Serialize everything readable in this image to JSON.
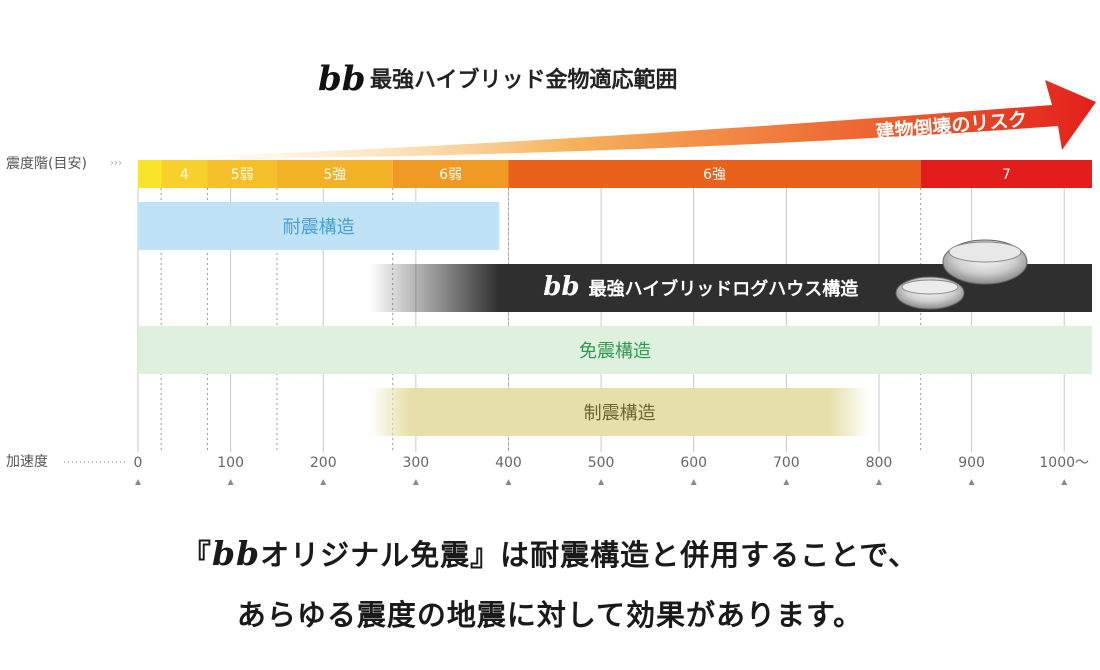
{
  "chart_data": {
    "type": "bar",
    "title_brand": "bb",
    "title": "最強ハイブリッド金物適応範囲",
    "risk_label": "建物倒壊のリスク",
    "y_axis_label": "震度階(目安)",
    "x_axis_label": "加速度",
    "x_ticks": [
      "0",
      "100",
      "200",
      "300",
      "400",
      "500",
      "600",
      "700",
      "800",
      "900",
      "1000〜"
    ],
    "x_tick_values": [
      0,
      100,
      200,
      300,
      400,
      500,
      600,
      700,
      800,
      900,
      1000
    ],
    "xlim": [
      0,
      1030
    ],
    "intensity_bands": [
      {
        "label": "",
        "from": 0,
        "to": 25,
        "color": "#f8e52a"
      },
      {
        "label": "4",
        "from": 25,
        "to": 75,
        "color": "#f7d02e"
      },
      {
        "label": "5弱",
        "from": 75,
        "to": 150,
        "color": "#f5bf2a"
      },
      {
        "label": "5強",
        "from": 150,
        "to": 275,
        "color": "#f3b225"
      },
      {
        "label": "6弱",
        "from": 275,
        "to": 400,
        "color": "#f19a23"
      },
      {
        "label": "6強",
        "from": 400,
        "to": 845,
        "color": "#e9611b"
      },
      {
        "label": "7",
        "from": 845,
        "to": 1030,
        "color": "#e21d1b"
      }
    ],
    "series": [
      {
        "name": "耐震構造",
        "from": 0,
        "to": 390,
        "color": "#bfe2f6",
        "text_color": "#4a9fd1",
        "fade_left": false
      },
      {
        "name": "最強ハイブリッドログハウス構造",
        "brand": "bb",
        "from": 250,
        "to": 1030,
        "color": "#2f2f2f",
        "text_color": "#ffffff",
        "fade_left": true
      },
      {
        "name": "免震構造",
        "from": 0,
        "to": 1030,
        "color": "#dff0df",
        "text_color": "#2f9a4f",
        "fade_left": false
      },
      {
        "name": "制震構造",
        "from": 250,
        "to": 790,
        "color": "#e7dfa9",
        "text_color": "#6b6331",
        "fade_left": true
      }
    ]
  },
  "caption": {
    "line1_open": "『",
    "line1_brand": "bb",
    "line1_rest": "オリジナル免震』は耐震構造と併用することで、",
    "line2": "あらゆる震度の地震に対して効果があります。"
  }
}
